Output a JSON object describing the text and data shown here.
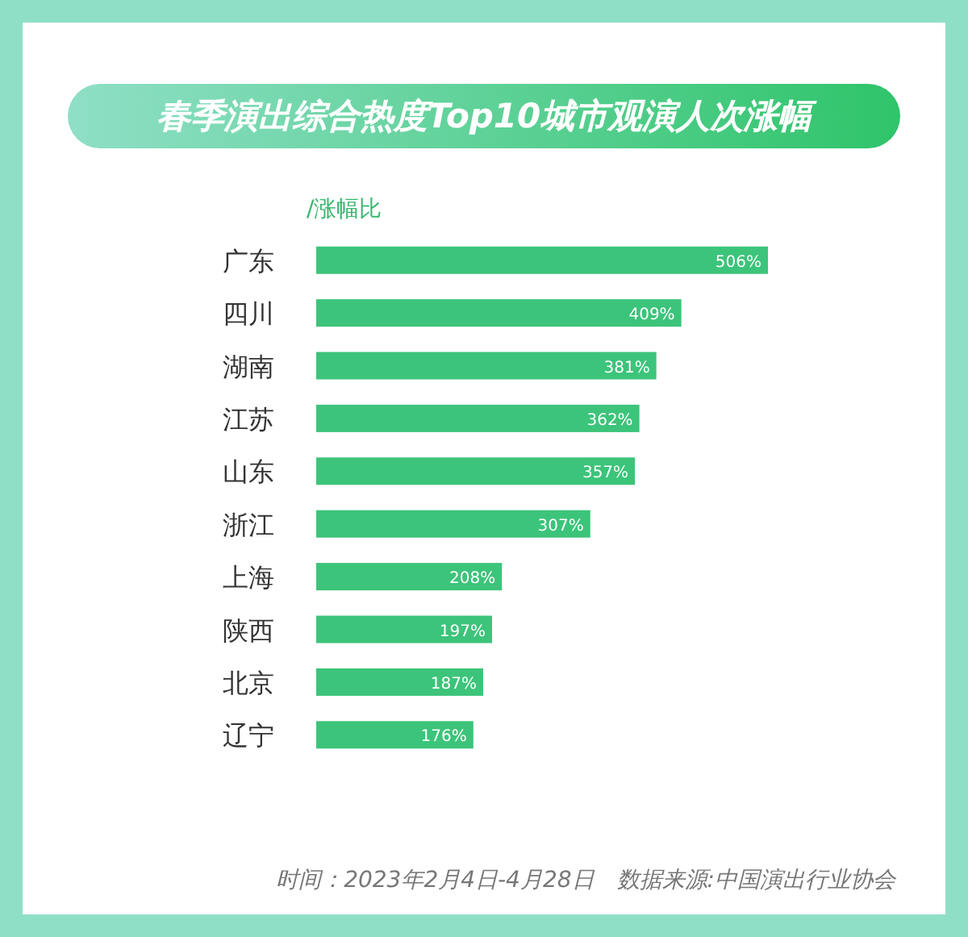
{
  "chart_data": {
    "type": "bar",
    "orientation": "horizontal",
    "title": "春季演出综合热度Top10城市观演人次涨幅",
    "ylabel": "/涨幅比",
    "categories": [
      "广东",
      "四川",
      "湖南",
      "江苏",
      "山东",
      "浙江",
      "上海",
      "陕西",
      "北京",
      "辽宁"
    ],
    "values": [
      506,
      409,
      381,
      362,
      357,
      307,
      208,
      197,
      187,
      176
    ],
    "value_labels": [
      "506%",
      "409%",
      "381%",
      "362%",
      "357%",
      "307%",
      "208%",
      "197%",
      "187%",
      "176%"
    ],
    "color": "#3cc47a",
    "annotations": [
      "时间：2023年2月4日-4月28日",
      "数据来源:中国演出行业协会"
    ]
  }
}
